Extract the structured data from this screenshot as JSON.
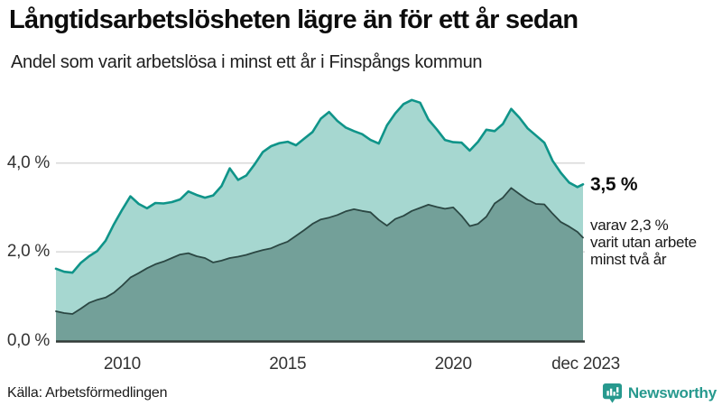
{
  "header": {
    "title": "Långtidsarbetslösheten lägre än för ett år sedan",
    "subtitle": "Andel som varit arbetslösa i minst ett år i Finspångs kommun"
  },
  "annotations": {
    "total_label": "3,5 %",
    "sub_label": "varav 2,3 %\nvarit utan arbete\nminst två år"
  },
  "footer": {
    "source": "Källa: Arbetsförmedlingen",
    "brand": "Newsworthy",
    "brand_icon": "newsworthy-chart-bubble-icon"
  },
  "colors": {
    "accent_teal": "#0f9489",
    "light_area_fill": "#a6d7d0",
    "dark_area_fill": "#73a099",
    "dark_area_stroke": "#2b4743",
    "gridline": "#d9d9d9",
    "baseline": "#333b38",
    "brand_teal": "#27998e",
    "text_dark": "#1a1a1a"
  },
  "chart_data": {
    "type": "area",
    "title": "Långtidsarbetslösheten lägre än för ett år sedan",
    "subtitle": "Andel som varit arbetslösa i minst ett år i Finspångs kommun",
    "x_unit": "decimal_year",
    "xlim": [
      2008,
      2023.92
    ],
    "ylim": [
      0,
      5.7
    ],
    "grid": "horizontal",
    "legend": "none",
    "x": [
      2008.0,
      2008.25,
      2008.5,
      2008.75,
      2009.0,
      2009.25,
      2009.5,
      2009.75,
      2010.0,
      2010.25,
      2010.5,
      2010.75,
      2011.0,
      2011.25,
      2011.5,
      2011.75,
      2012.0,
      2012.25,
      2012.5,
      2012.75,
      2013.0,
      2013.25,
      2013.5,
      2013.75,
      2014.0,
      2014.25,
      2014.5,
      2014.75,
      2015.0,
      2015.25,
      2015.5,
      2015.75,
      2016.0,
      2016.25,
      2016.5,
      2016.75,
      2017.0,
      2017.25,
      2017.5,
      2017.75,
      2018.0,
      2018.25,
      2018.5,
      2018.75,
      2019.0,
      2019.25,
      2019.5,
      2019.75,
      2020.0,
      2020.25,
      2020.5,
      2020.75,
      2021.0,
      2021.25,
      2021.5,
      2021.75,
      2022.0,
      2022.25,
      2022.5,
      2022.75,
      2023.0,
      2023.25,
      2023.5,
      2023.75,
      2023.92
    ],
    "series": [
      {
        "name": "Andel som varit arbetslösa minst ett år",
        "end_value_label": "3,5 %",
        "fill": "#a6d7d0",
        "stroke": "#0f9489",
        "values": [
          1.62,
          1.55,
          1.53,
          1.75,
          1.9,
          2.02,
          2.25,
          2.62,
          2.95,
          3.25,
          3.08,
          2.98,
          3.1,
          3.09,
          3.12,
          3.18,
          3.36,
          3.28,
          3.22,
          3.27,
          3.48,
          3.88,
          3.62,
          3.72,
          3.97,
          4.25,
          4.38,
          4.45,
          4.48,
          4.4,
          4.55,
          4.7,
          5.0,
          5.15,
          4.95,
          4.8,
          4.72,
          4.65,
          4.52,
          4.44,
          4.85,
          5.12,
          5.33,
          5.42,
          5.36,
          4.98,
          4.76,
          4.52,
          4.47,
          4.46,
          4.28,
          4.48,
          4.75,
          4.72,
          4.88,
          5.22,
          5.02,
          4.78,
          4.62,
          4.46,
          4.05,
          3.78,
          3.56,
          3.46,
          3.52
        ]
      },
      {
        "name": "varav utan arbete minst två år",
        "end_value_label": "2,3 %",
        "fill": "#73a099",
        "stroke": "#2b4743",
        "values": [
          0.66,
          0.62,
          0.6,
          0.72,
          0.85,
          0.92,
          0.97,
          1.08,
          1.24,
          1.42,
          1.52,
          1.63,
          1.72,
          1.78,
          1.86,
          1.94,
          1.97,
          1.9,
          1.86,
          1.76,
          1.8,
          1.86,
          1.89,
          1.93,
          1.99,
          2.04,
          2.08,
          2.16,
          2.23,
          2.36,
          2.49,
          2.63,
          2.73,
          2.77,
          2.83,
          2.91,
          2.96,
          2.92,
          2.89,
          2.72,
          2.59,
          2.74,
          2.81,
          2.92,
          2.99,
          3.06,
          3.01,
          2.97,
          3.0,
          2.81,
          2.58,
          2.63,
          2.79,
          3.09,
          3.22,
          3.44,
          3.3,
          3.17,
          3.08,
          3.07,
          2.86,
          2.67,
          2.57,
          2.45,
          2.32
        ]
      }
    ],
    "y_ticks": [
      {
        "label": "0,0 %",
        "value": 0
      },
      {
        "label": "2,0 %",
        "value": 2
      },
      {
        "label": "4,0 %",
        "value": 4
      }
    ],
    "x_ticks": [
      {
        "label": "2010",
        "value": 2010
      },
      {
        "label": "2015",
        "value": 2015
      },
      {
        "label": "2020",
        "value": 2020
      },
      {
        "label": "dec 2023",
        "value": 2023.92
      }
    ]
  }
}
